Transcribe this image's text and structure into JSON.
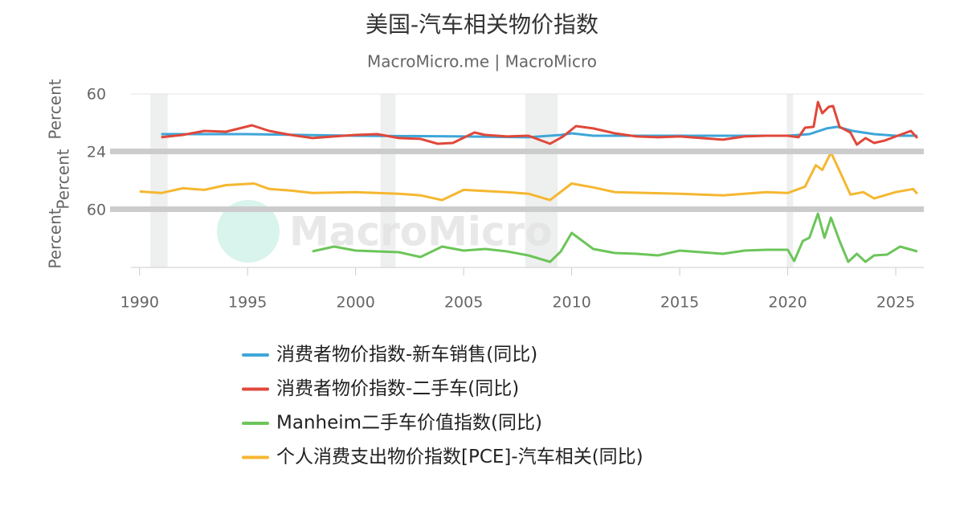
{
  "chart_data": [
    {
      "type": "line",
      "title": "美国-汽车相关物价指数",
      "subtitle": "MacroMicro.me | MacroMicro",
      "ylabel": "Percent",
      "xlim": [
        1989.6,
        2026.3
      ],
      "ylim": [
        -15,
        60
      ],
      "yticks": [
        60
      ],
      "shaded_periods": [
        [
          1990.5,
          1991.3
        ],
        [
          2001.15,
          2001.85
        ],
        [
          2007.85,
          2009.35
        ],
        [
          2019.95,
          2020.25
        ]
      ],
      "series": [
        {
          "name": "消费者物价指数-新车销售(同比)",
          "color": "#3ea6d8",
          "x": [
            1991,
            1993,
            1995,
            2000,
            2005,
            2008,
            2009.5,
            2010,
            2011,
            2015,
            2020,
            2021,
            2021.8,
            2022.3,
            2023,
            2024,
            2025,
            2026
          ],
          "values": [
            4.9,
            4.9,
            4.9,
            2.7,
            1.6,
            0.5,
            3.8,
            6.0,
            2.7,
            2.7,
            2.7,
            4.9,
            12.7,
            14.9,
            9.3,
            4.9,
            2.7,
            2.7
          ]
        },
        {
          "name": "消费者物价指数-二手车(同比)",
          "color": "#e0483a",
          "x": [
            1991,
            1992,
            1993,
            1994,
            1995.2,
            1996,
            1997,
            1998,
            1999,
            2000,
            2001,
            2002,
            2003,
            2003.8,
            2004.5,
            2005.5,
            2006,
            2007,
            2008,
            2009,
            2009.6,
            2010.2,
            2011,
            2012,
            2013,
            2014,
            2015,
            2016,
            2017,
            2018,
            2019,
            2020,
            2020.5,
            2020.8,
            2021.2,
            2021.4,
            2021.6,
            2021.9,
            2022.1,
            2022.4,
            2022.9,
            2023.2,
            2023.6,
            2024,
            2024.5,
            2025,
            2025.7,
            2026
          ],
          "values": [
            0.5,
            3.8,
            9.3,
            8.2,
            17.0,
            9.3,
            3.8,
            -0.6,
            1.6,
            3.8,
            4.9,
            -0.6,
            -1.7,
            -8.4,
            -7.3,
            7.1,
            3.8,
            1.6,
            2.7,
            -8.4,
            1.6,
            15.9,
            12.7,
            6.0,
            1.6,
            0.5,
            1.6,
            -0.6,
            -2.8,
            1.6,
            2.7,
            2.7,
            0.5,
            13.7,
            14.9,
            49.0,
            33.5,
            42.4,
            43.5,
            14.9,
            7.1,
            -9.5,
            -0.6,
            -7.3,
            -3.9,
            1.6,
            9.3,
            -0.6
          ]
        }
      ]
    },
    {
      "type": "line",
      "ylabel": "Percent",
      "watermark": "MacroMicro",
      "xlim": [
        1989.6,
        2026.3
      ],
      "ylim": [
        -7,
        24
      ],
      "yticks": [
        24
      ],
      "series": [
        {
          "name": "个人消费支出物价指数[PCE]-汽车相关(同比)",
          "color": "#f5b731",
          "x": [
            1990,
            1991,
            1992,
            1993,
            1994,
            1995.3,
            1996,
            1997,
            1998,
            2000,
            2002,
            2003,
            2004,
            2005,
            2007,
            2008,
            2009,
            2010,
            2011,
            2012,
            2015,
            2017,
            2019,
            2020,
            2020.8,
            2021.3,
            2021.6,
            2022,
            2022.4,
            2022.9,
            2023.5,
            2024,
            2025,
            2025.8,
            2026
          ],
          "values": [
            1.5,
            0.6,
            3.3,
            2.4,
            5.1,
            6.0,
            2.9,
            2.0,
            0.6,
            1.1,
            0.2,
            -0.7,
            -3.4,
            2.4,
            1.1,
            0.2,
            -3.4,
            6.0,
            3.8,
            1.1,
            0.2,
            -0.7,
            1.1,
            0.6,
            4.2,
            16.4,
            13.7,
            23.6,
            13.2,
            -0.3,
            1.1,
            -2.5,
            1.1,
            2.9,
            0.2
          ]
        }
      ]
    },
    {
      "type": "line",
      "ylabel": "Percent",
      "xlim": [
        1989.6,
        2026.3
      ],
      "ylim": [
        -25,
        60
      ],
      "yticks": [
        60
      ],
      "xticks": [
        1990,
        1995,
        2000,
        2005,
        2010,
        2015,
        2020,
        2025
      ],
      "series": [
        {
          "name": "Manheim二手车价值指数(同比)",
          "color": "#6cc55a",
          "x": [
            1998,
            1999,
            2000,
            2001,
            2002,
            2003,
            2004,
            2005,
            2006,
            2007,
            2008,
            2009,
            2009.5,
            2010,
            2010.5,
            2011,
            2012,
            2013,
            2014,
            2015,
            2016,
            2017,
            2018,
            2019,
            2020,
            2020.3,
            2020.7,
            2021,
            2021.4,
            2021.7,
            2022,
            2022.4,
            2022.8,
            2023.2,
            2023.6,
            2024,
            2024.6,
            2025.2,
            2025.6,
            2026
          ],
          "values": [
            -1.4,
            5.7,
            -0.2,
            -1.4,
            -2.6,
            -9.7,
            5.7,
            -0.2,
            2.1,
            -1.4,
            -7.3,
            -16.7,
            -1.4,
            25.8,
            14.0,
            2.1,
            -3.8,
            -4.9,
            -7.3,
            -0.2,
            -2.6,
            -4.9,
            -0.2,
            1.0,
            1.0,
            -15.6,
            14.0,
            18.7,
            54.1,
            18.7,
            48.2,
            14.0,
            -16.7,
            -4.9,
            -16.7,
            -7.3,
            -6.1,
            5.7,
            2.1,
            -1.4
          ]
        }
      ]
    }
  ]
}
